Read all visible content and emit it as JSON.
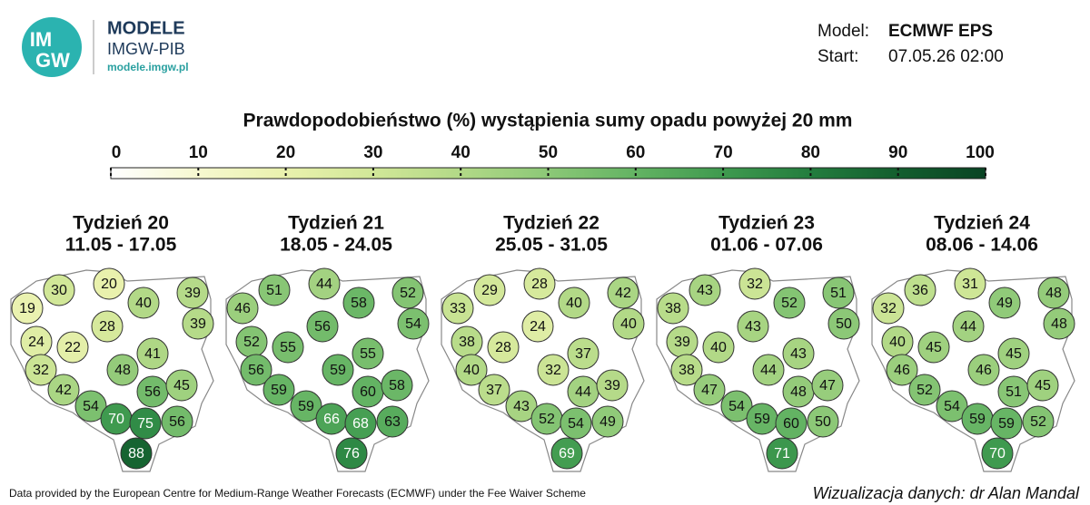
{
  "header": {
    "logo": [
      "IM",
      "GW"
    ],
    "brand": "MODELE",
    "org": "IMGW-PIB",
    "url": "modele.imgw.pl",
    "model_label": "Model:",
    "model": "ECMWF EPS",
    "start_label": "Start:",
    "start": "07.05.26 02:00"
  },
  "chart_data": {
    "type": "map",
    "title": "Prawdopodobieństwo (%) wystąpienia sumy opadu powyżej 20 mm",
    "colorbar": {
      "ticks": [
        0,
        10,
        20,
        30,
        40,
        50,
        60,
        70,
        80,
        90,
        100
      ],
      "colors": [
        "#ffffff",
        "#f6f8cf",
        "#e9f1ad",
        "#d1e798",
        "#b2d987",
        "#8cc877",
        "#63b363",
        "#3f9a4f",
        "#237d3e",
        "#135e2e",
        "#094424"
      ]
    },
    "panels": [
      {
        "week": "Tydzień 20",
        "dates": "11.05 - 17.05",
        "values": [
          30,
          20,
          19,
          40,
          39,
          39,
          28,
          24,
          22,
          41,
          32,
          48,
          42,
          56,
          45,
          54,
          70,
          75,
          56,
          88
        ]
      },
      {
        "week": "Tydzień 21",
        "dates": "18.05 - 24.05",
        "values": [
          51,
          44,
          46,
          58,
          52,
          54,
          56,
          52,
          55,
          55,
          56,
          59,
          59,
          60,
          58,
          59,
          66,
          68,
          63,
          76
        ]
      },
      {
        "week": "Tydzień 22",
        "dates": "25.05 - 31.05",
        "values": [
          29,
          28,
          33,
          40,
          42,
          40,
          24,
          38,
          28,
          37,
          40,
          32,
          37,
          44,
          39,
          43,
          52,
          54,
          49,
          69
        ]
      },
      {
        "week": "Tydzień 23",
        "dates": "01.06 - 07.06",
        "values": [
          43,
          32,
          38,
          52,
          51,
          50,
          43,
          39,
          40,
          43,
          38,
          44,
          47,
          48,
          47,
          54,
          59,
          60,
          50,
          71
        ]
      },
      {
        "week": "Tydzień 24",
        "dates": "08.06 - 14.06",
        "values": [
          36,
          31,
          32,
          49,
          48,
          48,
          44,
          40,
          45,
          45,
          46,
          46,
          52,
          51,
          45,
          54,
          59,
          59,
          52,
          70
        ]
      }
    ]
  },
  "footer": {
    "source": "Data provided by the European Centre for Medium-Range Weather Forecasts (ECMWF) under the Fee Waiver Scheme",
    "credit": "Wizualizacja danych: dr Alan Mandal"
  }
}
